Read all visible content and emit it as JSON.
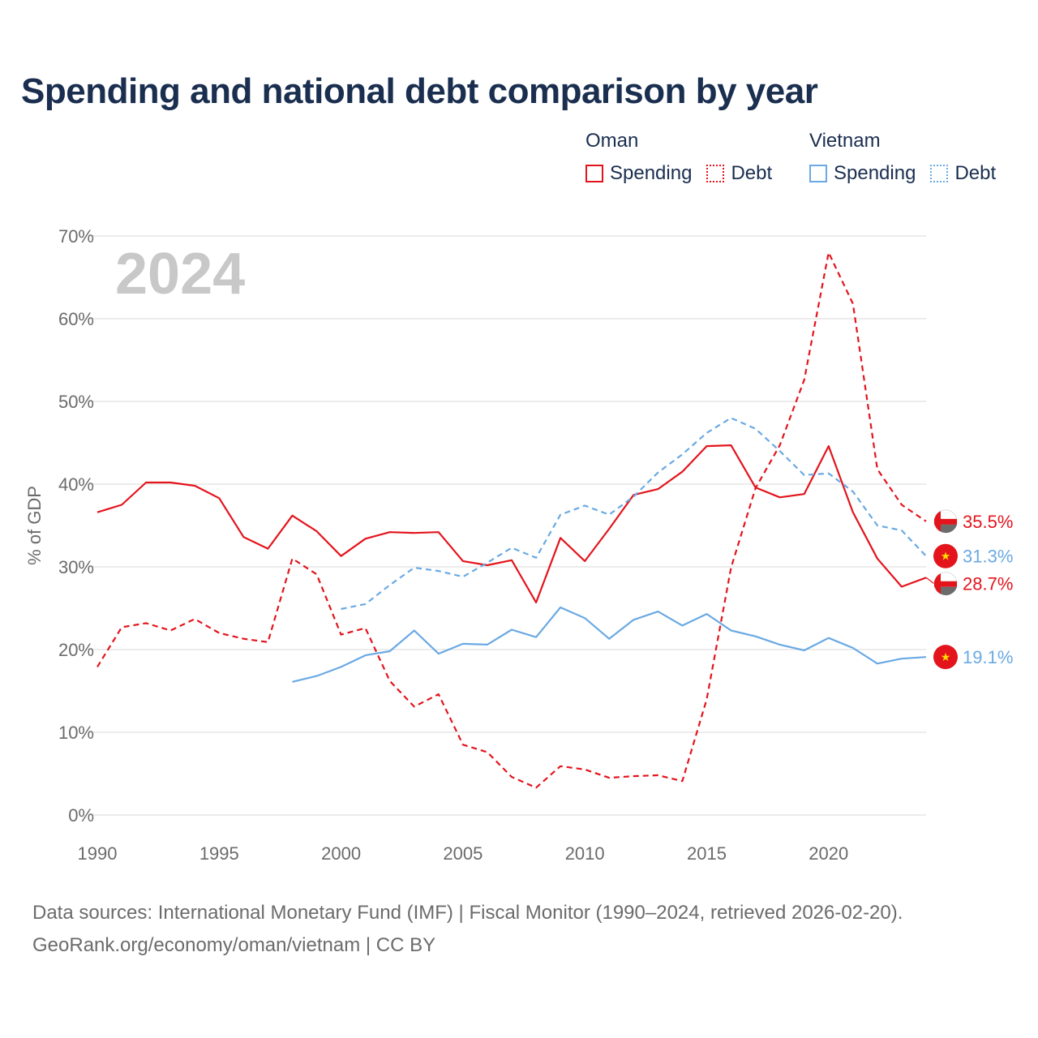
{
  "title": "Spending and national debt comparison by year",
  "legend": {
    "oman": {
      "name": "Oman",
      "spending": "Spending",
      "debt": "Debt"
    },
    "vietnam": {
      "name": "Vietnam",
      "spending": "Spending",
      "debt": "Debt"
    }
  },
  "colors": {
    "oman": "#e3141c",
    "vietnam": "#6aa9e3",
    "grid": "#e6e6e6",
    "axis_text": "#6b6b6b",
    "year_watermark": "#c8c8c8"
  },
  "chart_data": {
    "type": "line",
    "year_label": "2024",
    "ylabel": "% of GDP",
    "ylim": [
      0,
      70
    ],
    "xlim": [
      1990,
      2024
    ],
    "yticks": [
      0,
      10,
      20,
      30,
      40,
      50,
      60,
      70
    ],
    "ytick_labels": [
      "0%",
      "10%",
      "20%",
      "30%",
      "40%",
      "50%",
      "60%",
      "70%"
    ],
    "xticks": [
      1990,
      1995,
      2000,
      2005,
      2010,
      2015,
      2020
    ],
    "xtick_labels": [
      "1990",
      "1995",
      "2000",
      "2005",
      "2010",
      "2015",
      "2020"
    ],
    "series": [
      {
        "name": "Oman Spending",
        "country": "oman",
        "style": "solid",
        "x": [
          1990,
          1991,
          1992,
          1993,
          1994,
          1995,
          1996,
          1997,
          1998,
          1999,
          2000,
          2001,
          2002,
          2003,
          2004,
          2005,
          2006,
          2007,
          2008,
          2009,
          2010,
          2011,
          2012,
          2013,
          2014,
          2015,
          2016,
          2017,
          2018,
          2019,
          2020,
          2021,
          2022,
          2023,
          2024
        ],
        "values": [
          36.6,
          37.5,
          40.2,
          40.2,
          39.8,
          38.3,
          33.6,
          32.2,
          36.2,
          34.3,
          31.3,
          33.4,
          34.2,
          34.1,
          34.2,
          30.7,
          30.2,
          30.8,
          25.7,
          33.5,
          30.7,
          34.6,
          38.7,
          39.4,
          41.5,
          44.6,
          44.7,
          39.6,
          38.4,
          38.8,
          44.6,
          36.6,
          31.0,
          27.6,
          28.7
        ],
        "end_label": "28.7%"
      },
      {
        "name": "Oman Debt",
        "country": "oman",
        "style": "dashed",
        "x": [
          1990,
          1991,
          1992,
          1993,
          1994,
          1995,
          1996,
          1997,
          1998,
          1999,
          2000,
          2001,
          2002,
          2003,
          2004,
          2005,
          2006,
          2007,
          2008,
          2009,
          2010,
          2011,
          2012,
          2013,
          2014,
          2015,
          2016,
          2017,
          2018,
          2019,
          2020,
          2021,
          2022,
          2023,
          2024
        ],
        "values": [
          17.9,
          22.7,
          23.2,
          22.3,
          23.7,
          22.0,
          21.3,
          20.9,
          31.0,
          29.1,
          21.8,
          22.6,
          16.2,
          13.1,
          14.6,
          8.5,
          7.6,
          4.6,
          3.3,
          5.9,
          5.5,
          4.5,
          4.7,
          4.8,
          4.1,
          14.0,
          29.9,
          39.5,
          44.7,
          52.6,
          68.0,
          61.8,
          41.8,
          37.5,
          35.5
        ],
        "end_label": "35.5%"
      },
      {
        "name": "Vietnam Spending",
        "country": "vietnam",
        "style": "solid",
        "x": [
          1998,
          1999,
          2000,
          2001,
          2002,
          2003,
          2004,
          2005,
          2006,
          2007,
          2008,
          2009,
          2010,
          2011,
          2012,
          2013,
          2014,
          2015,
          2016,
          2017,
          2018,
          2019,
          2020,
          2021,
          2022,
          2023,
          2024
        ],
        "values": [
          16.1,
          16.8,
          17.9,
          19.3,
          19.8,
          22.3,
          19.5,
          20.7,
          20.6,
          22.4,
          21.5,
          25.1,
          23.8,
          21.3,
          23.6,
          24.6,
          22.9,
          24.3,
          22.3,
          21.6,
          20.6,
          19.9,
          21.4,
          20.2,
          18.3,
          18.9,
          19.1
        ],
        "end_label": "19.1%"
      },
      {
        "name": "Vietnam Debt",
        "country": "vietnam",
        "style": "dashed",
        "x": [
          2000,
          2001,
          2002,
          2003,
          2004,
          2005,
          2006,
          2007,
          2008,
          2009,
          2010,
          2011,
          2012,
          2013,
          2014,
          2015,
          2016,
          2017,
          2018,
          2019,
          2020,
          2021,
          2022,
          2023,
          2024
        ],
        "values": [
          24.9,
          25.5,
          27.8,
          29.9,
          29.5,
          28.8,
          30.5,
          32.3,
          31.1,
          36.3,
          37.4,
          36.3,
          38.5,
          41.4,
          43.6,
          46.2,
          48.0,
          46.7,
          44.0,
          41.1,
          41.3,
          39.1,
          35.0,
          34.4,
          31.3
        ],
        "end_label": "31.3%"
      }
    ]
  },
  "source": {
    "line1": "Data sources: International Monetary Fund (IMF) | Fiscal Monitor (1990–2024, retrieved 2026-02-20).",
    "line2": "GeoRank.org/economy/oman/vietnam | CC BY"
  }
}
